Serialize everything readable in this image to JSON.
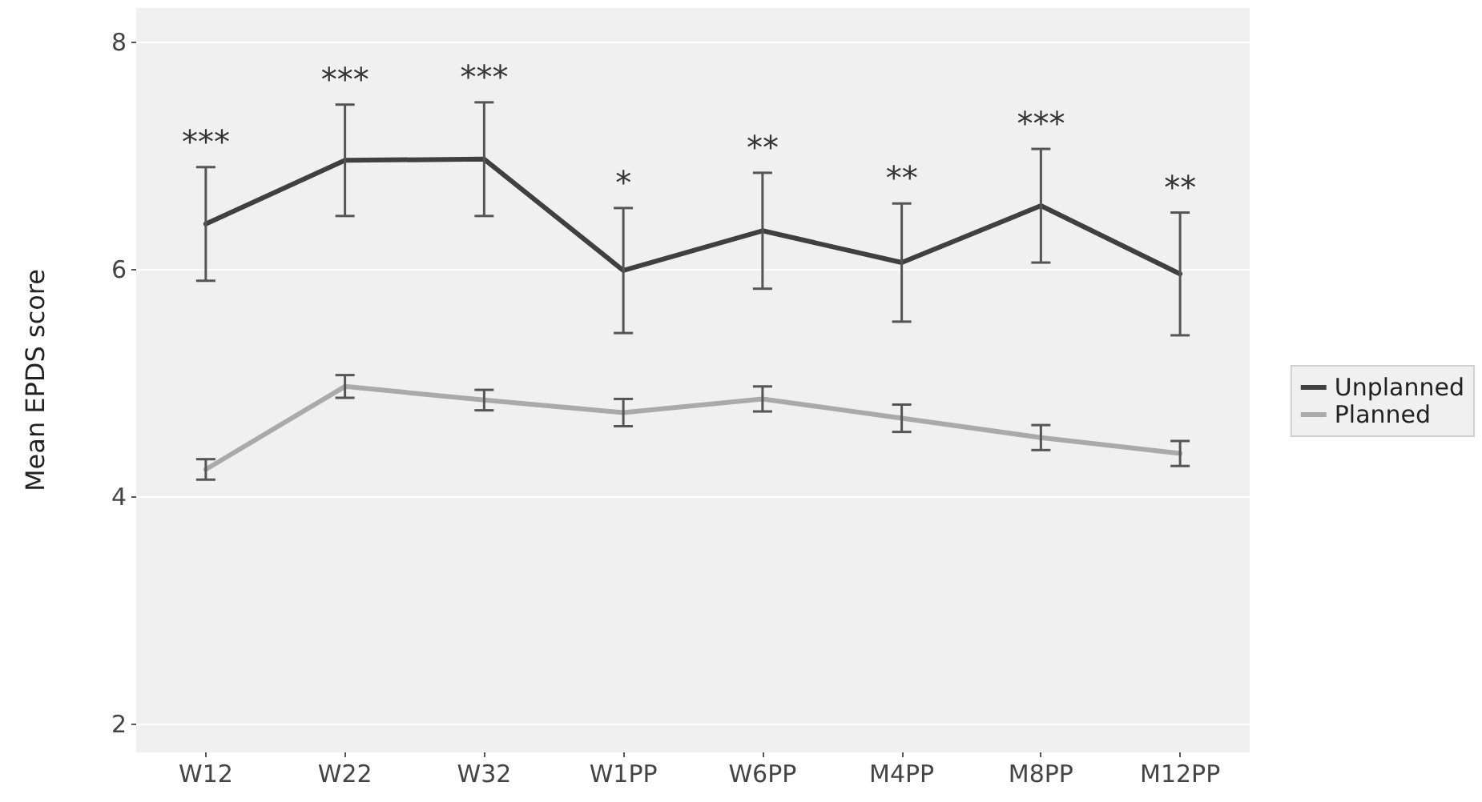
{
  "chart_data": {
    "type": "line",
    "ylabel": "Mean EPDS score",
    "categories": [
      "W12",
      "W22",
      "W32",
      "W1PP",
      "W6PP",
      "M4PP",
      "M8PP",
      "M12PP"
    ],
    "series": [
      {
        "name": "Unplanned",
        "color": "#404040",
        "values": [
          6.4,
          6.96,
          6.97,
          5.99,
          6.34,
          6.06,
          6.56,
          5.96
        ],
        "errors": [
          0.5,
          0.49,
          0.5,
          0.55,
          0.51,
          0.52,
          0.5,
          0.54
        ]
      },
      {
        "name": "Planned",
        "color": "#aaaaaa",
        "values": [
          4.24,
          4.97,
          4.85,
          4.74,
          4.86,
          4.69,
          4.52,
          4.38
        ],
        "errors": [
          0.09,
          0.1,
          0.09,
          0.12,
          0.11,
          0.12,
          0.11,
          0.11
        ]
      }
    ],
    "annotations": [
      "***",
      "***",
      "***",
      "*",
      "**",
      "**",
      "***",
      "**"
    ],
    "ylim": [
      1.75,
      8.3
    ],
    "yticks": [
      2,
      4,
      6,
      8
    ],
    "grid": "y",
    "legend": "right",
    "marker": "none",
    "line_style": "solid"
  }
}
